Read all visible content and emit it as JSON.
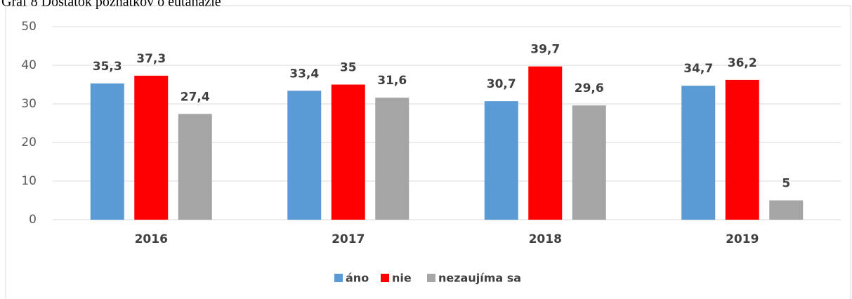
{
  "chart_data": {
    "type": "bar",
    "title": "Graf 8 Dostatok poznatkov o eutanázie",
    "categories": [
      "2016",
      "2017",
      "2018",
      "2019"
    ],
    "series": [
      {
        "name": "áno",
        "color": "#5b9bd5",
        "values": [
          35.3,
          33.4,
          30.7,
          34.7
        ],
        "value_labels": [
          "35,3",
          "33,4",
          "30,7",
          "34,7"
        ]
      },
      {
        "name": "nie",
        "color": "#ff0000",
        "values": [
          37.3,
          35,
          39.7,
          36.2
        ],
        "value_labels": [
          "37,3",
          "35",
          "39,7",
          "36,2"
        ]
      },
      {
        "name": "nezaujíma sa",
        "color": "#a5a5a5",
        "values": [
          27.4,
          31.6,
          29.6,
          5
        ],
        "value_labels": [
          "27,4",
          "31,6",
          "29,6",
          "5"
        ]
      }
    ],
    "ylim": [
      0,
      50
    ],
    "yticks": [
      0,
      10,
      20,
      30,
      40,
      50
    ],
    "grid": true,
    "legend": "bottom"
  }
}
